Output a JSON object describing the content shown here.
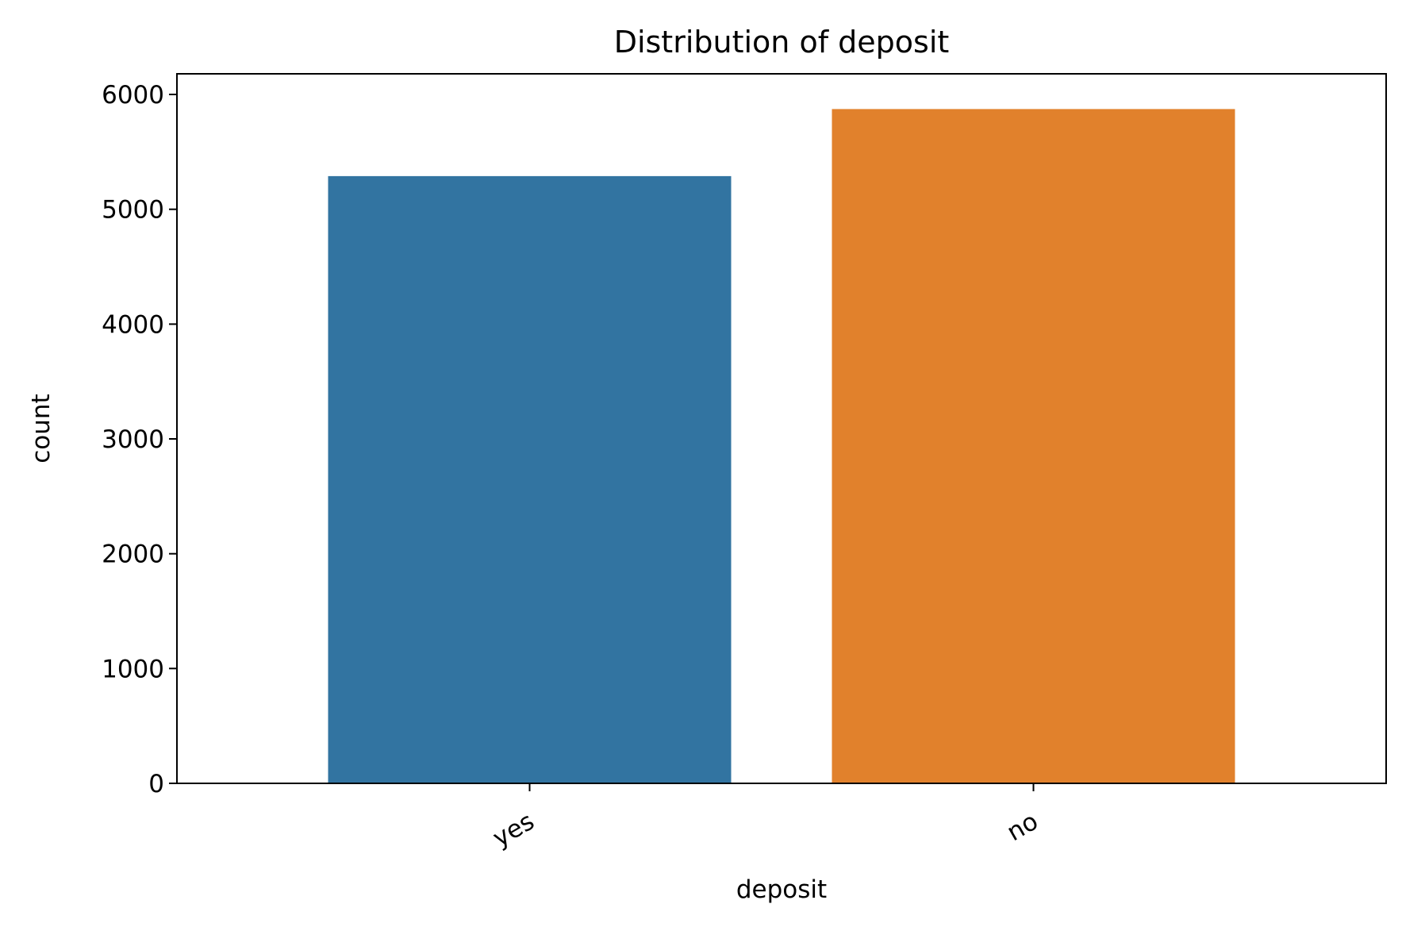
{
  "chart_data": {
    "type": "bar",
    "title": "Distribution of deposit",
    "xlabel": "deposit",
    "ylabel": "count",
    "categories": [
      "yes",
      "no"
    ],
    "values": [
      5289,
      5873
    ],
    "colors": [
      "#3274a1",
      "#e1812c"
    ],
    "ylim": [
      0,
      6180
    ],
    "yticks": [
      0,
      1000,
      2000,
      3000,
      4000,
      5000,
      6000
    ],
    "ytick_labels": [
      "0",
      "1000",
      "2000",
      "3000",
      "4000",
      "5000",
      "6000"
    ],
    "grid": false,
    "legend": "none",
    "xtick_rotation": "30 degrees"
  }
}
